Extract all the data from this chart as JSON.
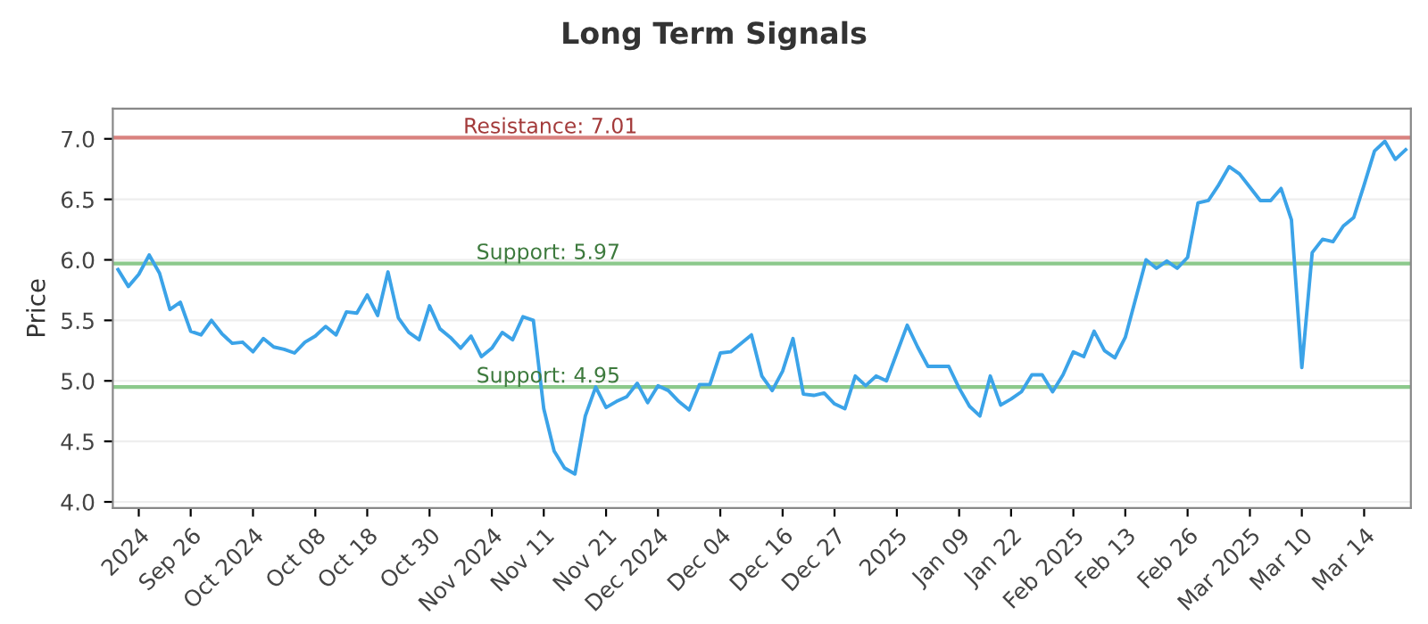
{
  "chart_data": {
    "type": "line",
    "title": "Long Term Signals",
    "ylabel": "Price",
    "categories": [
      null,
      null,
      "2024",
      null,
      null,
      null,
      null,
      "Sep 26",
      null,
      null,
      null,
      null,
      null,
      "Oct 2024",
      null,
      null,
      null,
      null,
      null,
      "Oct 08",
      null,
      null,
      null,
      null,
      "Oct 18",
      null,
      null,
      null,
      null,
      null,
      "Oct 30",
      null,
      null,
      null,
      null,
      null,
      "Nov 2024",
      null,
      null,
      null,
      null,
      "Nov 11",
      null,
      null,
      null,
      null,
      null,
      "Nov 21",
      null,
      null,
      null,
      null,
      "Dec 2024",
      null,
      null,
      null,
      null,
      null,
      "Dec 04",
      null,
      null,
      null,
      null,
      null,
      "Dec 16",
      null,
      null,
      null,
      null,
      "Dec 27",
      null,
      null,
      null,
      null,
      null,
      "2025",
      null,
      null,
      null,
      null,
      null,
      "Jan 09",
      null,
      null,
      null,
      null,
      "Jan 22",
      null,
      null,
      null,
      null,
      null,
      "Feb 2025",
      null,
      null,
      null,
      null,
      "Feb 13",
      null,
      null,
      null,
      null,
      null,
      "Feb 26",
      null,
      null,
      null,
      null,
      null,
      "Mar 2025",
      null,
      null,
      null,
      null,
      "Mar 10",
      null,
      null,
      null,
      null,
      null,
      "Mar 14",
      null,
      null,
      null,
      null
    ],
    "series": [
      {
        "color": "#3ba3e8",
        "values": [
          5.92,
          5.78,
          5.88,
          6.04,
          5.89,
          5.59,
          5.65,
          5.41,
          5.38,
          5.5,
          5.39,
          5.31,
          5.32,
          5.24,
          5.35,
          5.28,
          5.26,
          5.23,
          5.32,
          5.37,
          5.45,
          5.38,
          5.57,
          5.56,
          5.71,
          5.54,
          5.9,
          5.52,
          5.4,
          5.34,
          5.62,
          5.43,
          5.36,
          5.27,
          5.37,
          5.2,
          5.27,
          5.4,
          5.34,
          5.53,
          5.5,
          4.77,
          4.42,
          4.28,
          4.23,
          4.71,
          4.95,
          4.78,
          4.83,
          4.87,
          4.98,
          4.82,
          4.96,
          4.92,
          4.83,
          4.76,
          4.97,
          4.97,
          5.23,
          5.24,
          5.31,
          5.38,
          5.04,
          4.92,
          5.08,
          5.35,
          4.89,
          4.88,
          4.9,
          4.81,
          4.77,
          5.04,
          4.96,
          5.04,
          5.0,
          5.23,
          5.46,
          5.28,
          5.12,
          5.12,
          5.12,
          4.94,
          4.79,
          4.71,
          5.04,
          4.8,
          4.85,
          4.91,
          5.05,
          5.05,
          4.91,
          5.05,
          5.24,
          5.2,
          5.41,
          5.25,
          5.19,
          5.36,
          5.68,
          6.0,
          5.93,
          5.99,
          5.93,
          6.02,
          6.47,
          6.49,
          6.62,
          6.77,
          6.71,
          6.6,
          6.49,
          6.49,
          6.59,
          6.33,
          5.11,
          6.06,
          6.17,
          6.15,
          6.28,
          6.35,
          6.62,
          6.9,
          6.98,
          6.83,
          6.91
        ]
      }
    ],
    "ylim": [
      3.95,
      7.25
    ],
    "yticks": [
      {
        "value": 4,
        "label": "4.0"
      },
      {
        "value": 4.5,
        "label": "4.5"
      },
      {
        "value": 5,
        "label": "5.0"
      },
      {
        "value": 5.5,
        "label": "5.5"
      },
      {
        "value": 6,
        "label": "6.0"
      },
      {
        "value": 6.5,
        "label": "6.5"
      },
      {
        "value": 7,
        "label": "7.0"
      }
    ],
    "grid": "y",
    "marker": "none",
    "line_style": "solid",
    "ref_lines": [
      {
        "axis": "y",
        "value": 7.01,
        "label": "Resistance: 7.01",
        "color": "#d9827f"
      },
      {
        "axis": "y",
        "value": 5.97,
        "label": "Support: 5.97",
        "color": "#8cc98c"
      },
      {
        "axis": "y",
        "value": 4.95,
        "label": "Support: 4.95",
        "color": "#8cc98c"
      }
    ]
  }
}
